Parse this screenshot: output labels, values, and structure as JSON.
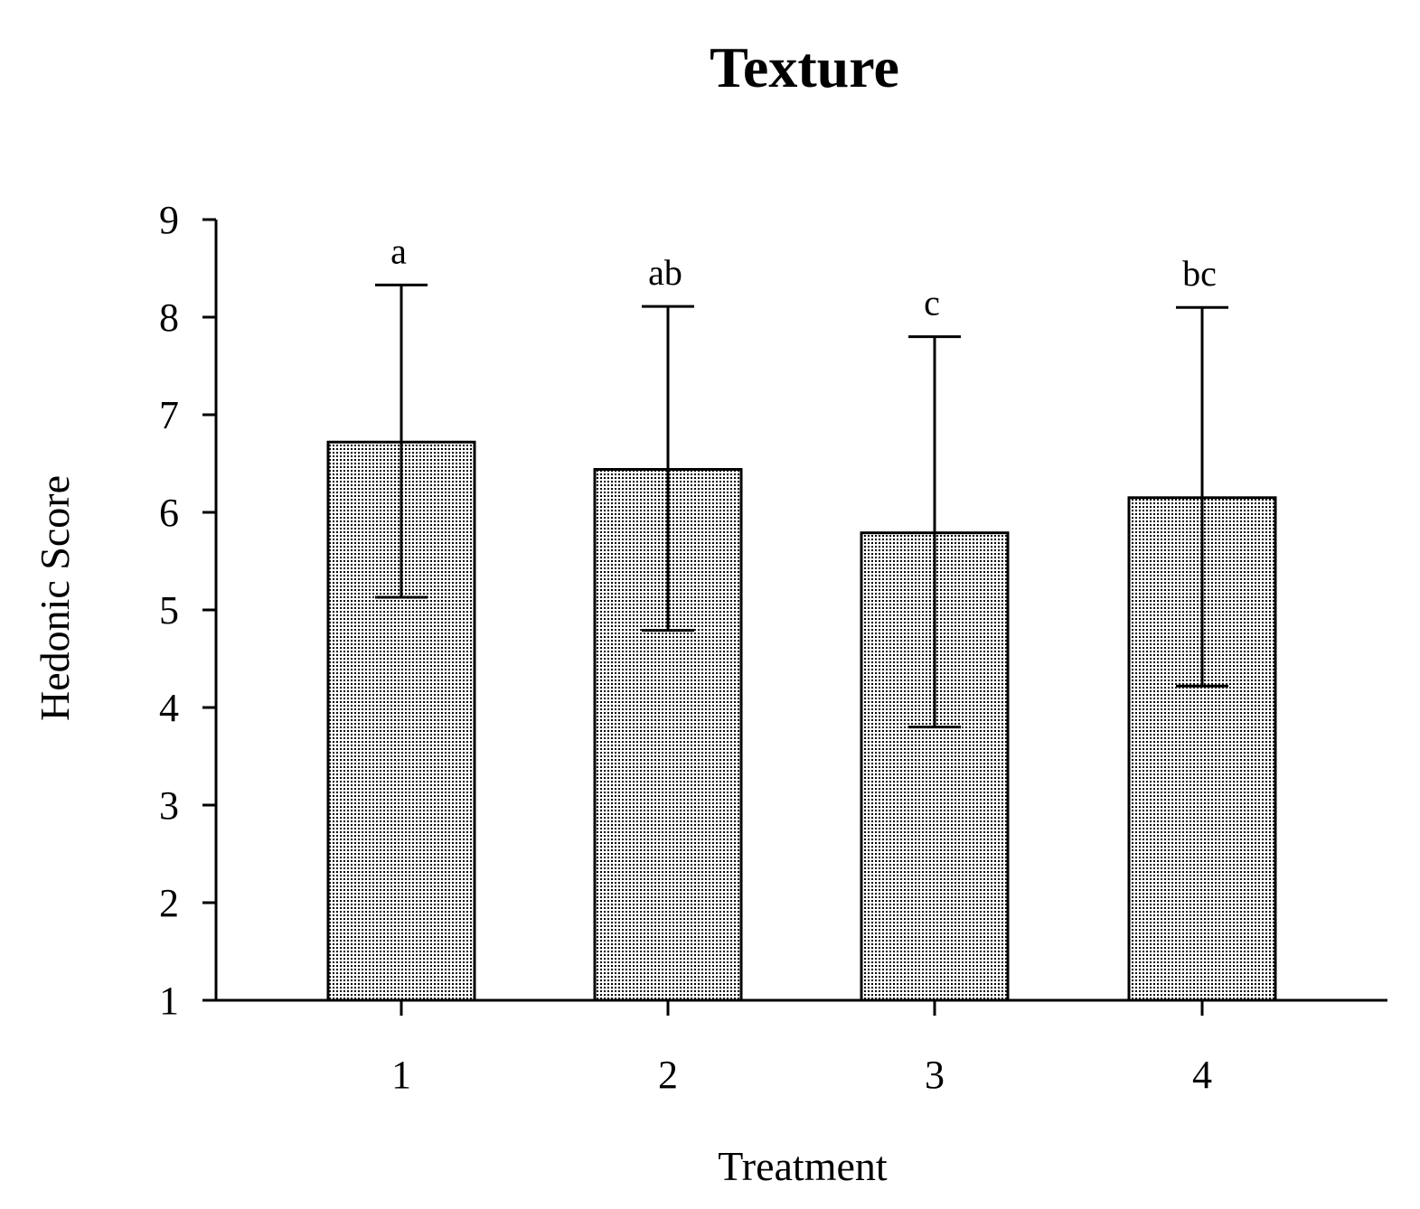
{
  "chart_data": {
    "type": "bar",
    "title": "Texture",
    "xlabel": "Treatment",
    "ylabel": "Hedonic Score",
    "categories": [
      "1",
      "2",
      "3",
      "4"
    ],
    "values": [
      6.72,
      6.44,
      5.79,
      6.15
    ],
    "error_upper": [
      8.33,
      8.11,
      7.8,
      8.1
    ],
    "error_lower": [
      5.13,
      4.79,
      3.8,
      4.22
    ],
    "significance_labels": [
      "a",
      "ab",
      "c",
      "bc"
    ],
    "ylim": [
      1,
      9
    ],
    "yticks": [
      "1",
      "2",
      "3",
      "4",
      "5",
      "6",
      "7",
      "8",
      "9"
    ],
    "grid": false,
    "bar_fill": "dotted pattern",
    "colors": {
      "bar_stroke": "#000000",
      "dot": "#000000",
      "background": "#ffffff"
    }
  }
}
